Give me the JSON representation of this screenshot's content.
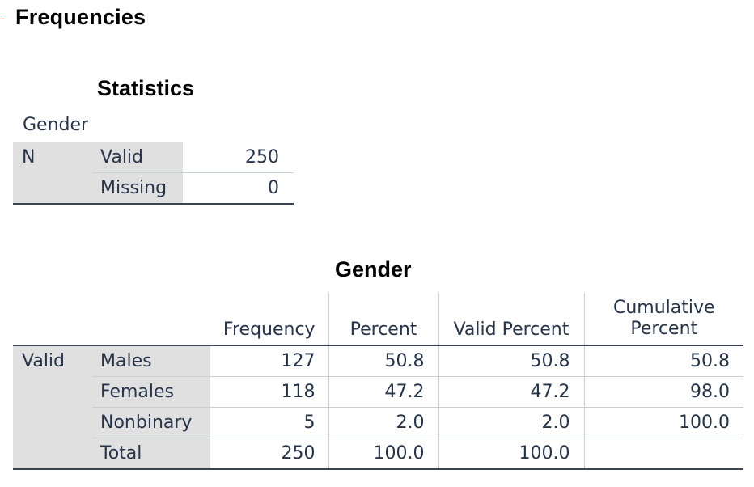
{
  "header": {
    "title": "Frequencies"
  },
  "statistics": {
    "title": "Statistics",
    "variable": "Gender",
    "row_group": "N",
    "rows": [
      {
        "label": "Valid",
        "value": "250"
      },
      {
        "label": "Missing",
        "value": "0"
      }
    ]
  },
  "frequency_table": {
    "title": "Gender",
    "columns": [
      "Frequency",
      "Percent",
      "Valid Percent",
      "Cumulative Percent"
    ],
    "row_group": "Valid",
    "rows": [
      {
        "label": "Males",
        "frequency": "127",
        "percent": "50.8",
        "valid_percent": "50.8",
        "cumulative_percent": "50.8"
      },
      {
        "label": "Females",
        "frequency": "118",
        "percent": "47.2",
        "valid_percent": "47.2",
        "cumulative_percent": "98.0"
      },
      {
        "label": "Nonbinary",
        "frequency": "5",
        "percent": "2.0",
        "valid_percent": "2.0",
        "cumulative_percent": "100.0"
      },
      {
        "label": "Total",
        "frequency": "250",
        "percent": "100.0",
        "valid_percent": "100.0",
        "cumulative_percent": ""
      }
    ]
  }
}
